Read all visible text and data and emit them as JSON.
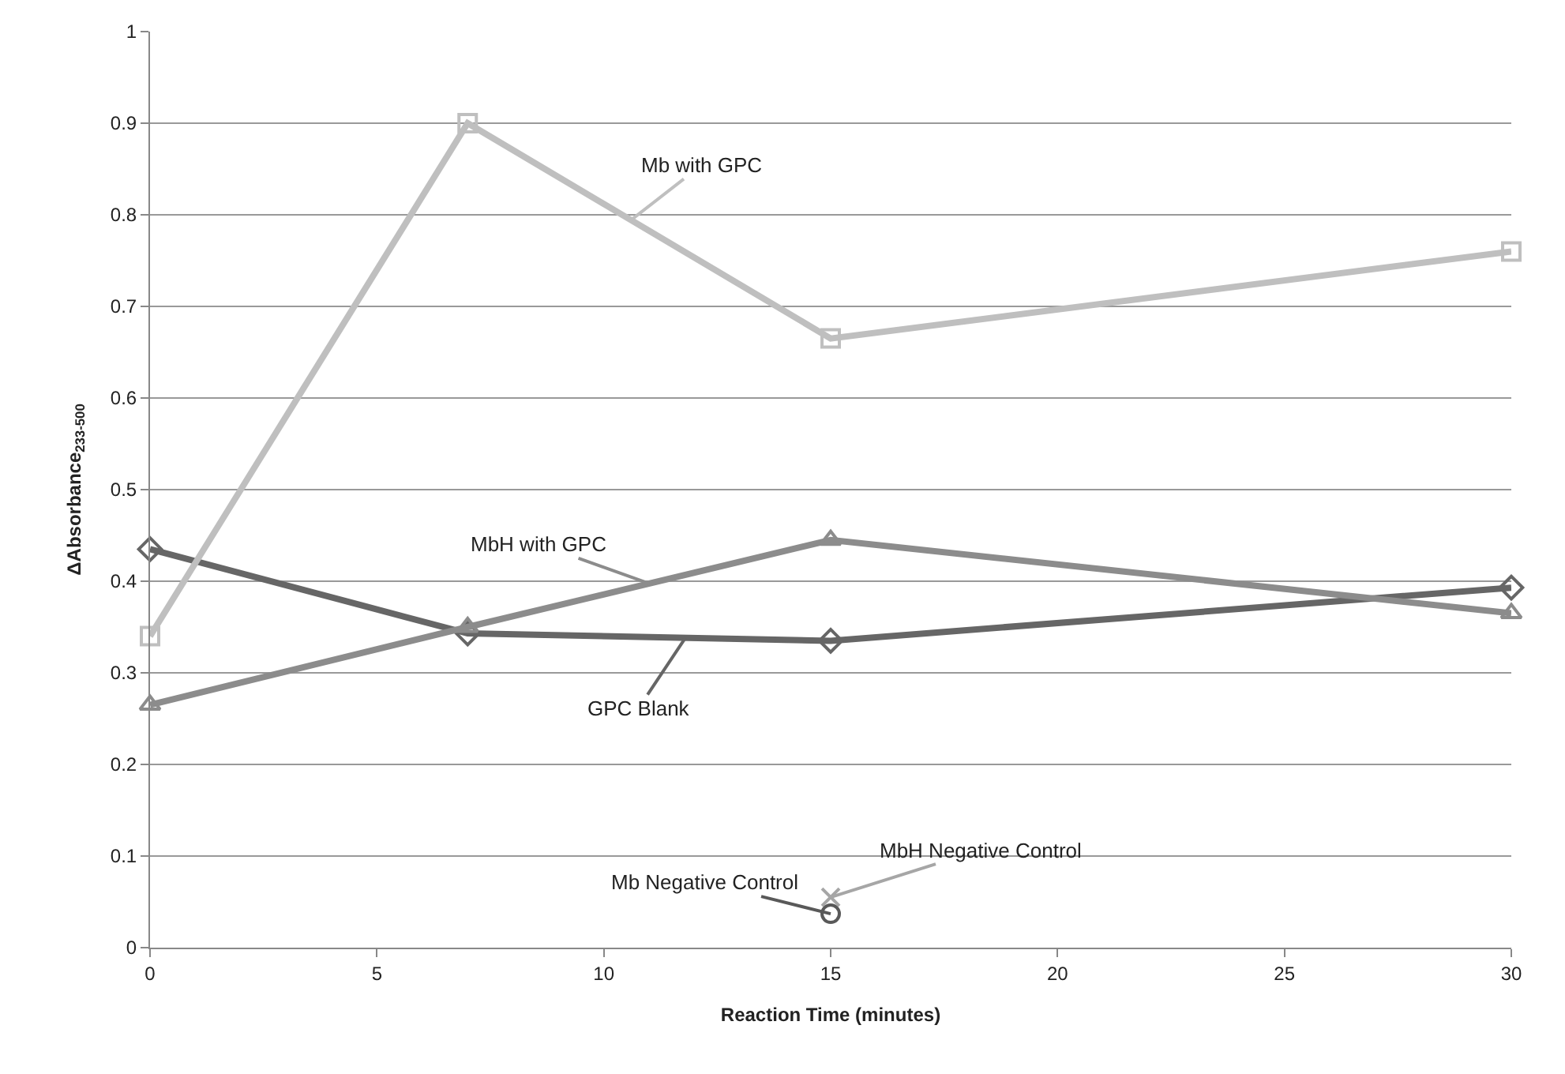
{
  "chart_data": {
    "type": "line",
    "xlabel": "Reaction Time (minutes)",
    "ylabel": "ΔAbsorbance$_{233-500}$",
    "xlim": [
      0,
      30
    ],
    "xticks": [
      0,
      5,
      10,
      15,
      20,
      25,
      30
    ],
    "ylim": [
      0,
      1
    ],
    "yticks": [
      0,
      0.1,
      0.2,
      0.3,
      0.4,
      0.5,
      0.6,
      0.7,
      0.8,
      0.9,
      1
    ],
    "grid": "y",
    "legend": false,
    "series": [
      {
        "name": "Mb with GPC",
        "color": "#bfbfbf",
        "marker": "square",
        "x": [
          0,
          7,
          15,
          30
        ],
        "values": [
          0.34,
          0.9,
          0.665,
          0.76
        ]
      },
      {
        "name": "MbH with GPC",
        "color": "#8c8c8c",
        "marker": "triangle",
        "x": [
          0,
          7,
          15,
          30
        ],
        "values": [
          0.265,
          0.35,
          0.445,
          0.365
        ]
      },
      {
        "name": "GPC Blank",
        "color": "#666666",
        "marker": "diamond",
        "x": [
          0,
          7,
          15,
          30
        ],
        "values": [
          0.435,
          0.343,
          0.335,
          0.393
        ]
      },
      {
        "name": "Mb Negative Control",
        "color": "#595959",
        "marker": "circle",
        "x": [
          15
        ],
        "values": [
          0.037
        ]
      },
      {
        "name": "MbH Negative Control",
        "color": "#a6a6a6",
        "marker": "cross",
        "x": [
          15
        ],
        "values": [
          0.055
        ]
      }
    ]
  }
}
